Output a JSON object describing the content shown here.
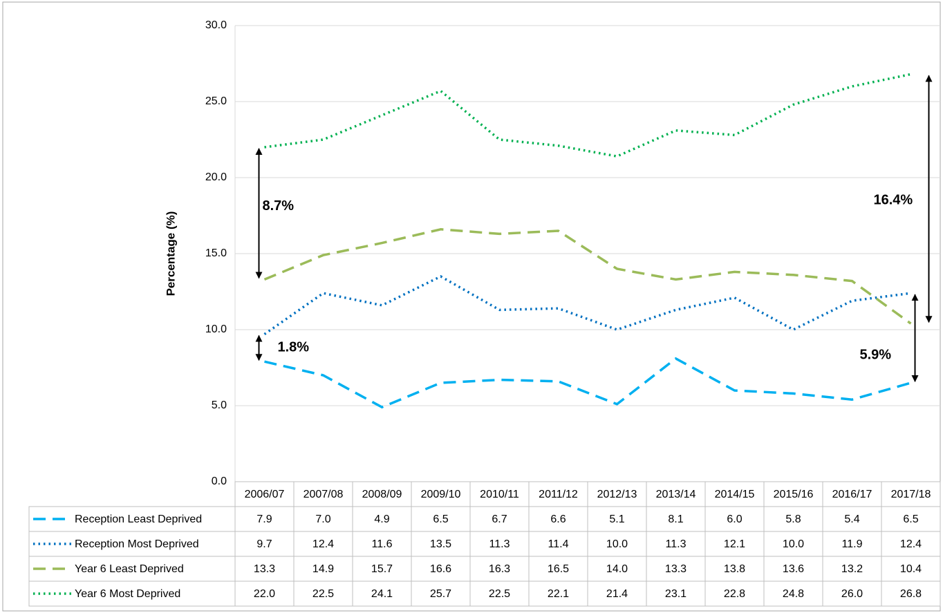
{
  "chart_data": {
    "type": "line",
    "y_label": "Percentage (%)",
    "ylim": [
      0,
      30
    ],
    "yticks": [
      {
        "value": 0,
        "label": "0.0"
      },
      {
        "value": 5,
        "label": "5.0"
      },
      {
        "value": 10,
        "label": "10.0"
      },
      {
        "value": 15,
        "label": "15.0"
      },
      {
        "value": 20,
        "label": "20.0"
      },
      {
        "value": 25,
        "label": "25.0"
      },
      {
        "value": 30,
        "label": "30.0"
      }
    ],
    "grid": true,
    "categories": [
      "2006/07",
      "2007/08",
      "2008/09",
      "2009/10",
      "2010/11",
      "2011/12",
      "2012/13",
      "2013/14",
      "2014/15",
      "2015/16",
      "2016/17",
      "2017/18"
    ],
    "series": [
      {
        "name": "Reception Least Deprived",
        "color": "#00b0f0",
        "dash": "dashed",
        "values": [
          7.9,
          7.0,
          4.9,
          6.5,
          6.7,
          6.6,
          5.1,
          8.1,
          6.0,
          5.8,
          5.4,
          6.5
        ],
        "value_labels": [
          "7.9",
          "7.0",
          "4.9",
          "6.5",
          "6.7",
          "6.6",
          "5.1",
          "8.1",
          "6.0",
          "5.8",
          "5.4",
          "6.5"
        ]
      },
      {
        "name": "Reception Most Deprived",
        "color": "#0070c0",
        "dash": "dotted",
        "values": [
          9.7,
          12.4,
          11.6,
          13.5,
          11.3,
          11.4,
          10.0,
          11.3,
          12.1,
          10.0,
          11.9,
          12.4
        ],
        "value_labels": [
          "9.7",
          "12.4",
          "11.6",
          "13.5",
          "11.3",
          "11.4",
          "10.0",
          "11.3",
          "12.1",
          "10.0",
          "11.9",
          "12.4"
        ]
      },
      {
        "name": "Year 6 Least Deprived",
        "color": "#9bbb59",
        "dash": "dashed",
        "values": [
          13.3,
          14.9,
          15.7,
          16.6,
          16.3,
          16.5,
          14.0,
          13.3,
          13.8,
          13.6,
          13.2,
          10.4
        ],
        "value_labels": [
          "13.3",
          "14.9",
          "15.7",
          "16.6",
          "16.3",
          "16.5",
          "14.0",
          "13.3",
          "13.8",
          "13.6",
          "13.2",
          "10.4"
        ]
      },
      {
        "name": "Year 6 Most Deprived",
        "color": "#00b050",
        "dash": "dotted",
        "values": [
          22.0,
          22.5,
          24.1,
          25.7,
          22.5,
          22.1,
          21.4,
          23.1,
          22.8,
          24.8,
          26.0,
          26.8
        ],
        "value_labels": [
          "22.0",
          "22.5",
          "24.1",
          "25.7",
          "22.5",
          "22.1",
          "21.4",
          "23.1",
          "22.8",
          "24.8",
          "26.0",
          "26.8"
        ]
      }
    ],
    "annotations": [
      {
        "text": "8.7%"
      },
      {
        "text": "1.8%"
      },
      {
        "text": "16.4%"
      },
      {
        "text": "5.9%"
      }
    ]
  }
}
